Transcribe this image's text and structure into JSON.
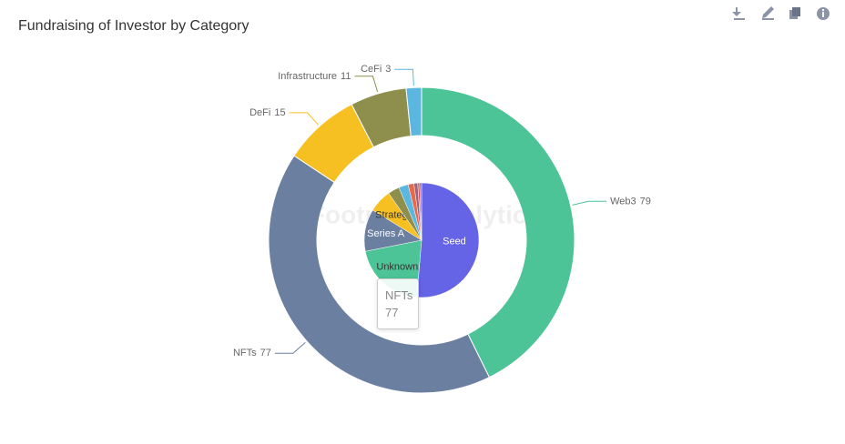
{
  "chart_data": [
    {
      "type": "donut",
      "title": "Fundraising of Investor by Category",
      "categories": [
        "Web3",
        "NFTs",
        "DeFi",
        "Infrastructure",
        "CeFi"
      ],
      "values": [
        79,
        77,
        15,
        11,
        3
      ],
      "colors": [
        "#4cc497",
        "#6b7fa0",
        "#f6c022",
        "#8e8f4c",
        "#5bb6e0"
      ],
      "watermark": "Footprint Analytics",
      "tooltip_index": 1
    },
    {
      "type": "pie",
      "categories": [
        "Seed",
        "Unknown",
        "Series A",
        "Strategic",
        null,
        null,
        null,
        null,
        null,
        null
      ],
      "values": [
        95,
        38,
        22,
        12,
        6,
        5,
        3,
        2,
        1,
        1
      ],
      "colors": [
        "#6563e6",
        "#4cc497",
        "#6b7fa0",
        "#f6c022",
        "#8e8f4c",
        "#5bb6e0",
        "#e8684a",
        "#a0657e",
        "#d9534f",
        "#7c6bd6"
      ]
    }
  ]
}
